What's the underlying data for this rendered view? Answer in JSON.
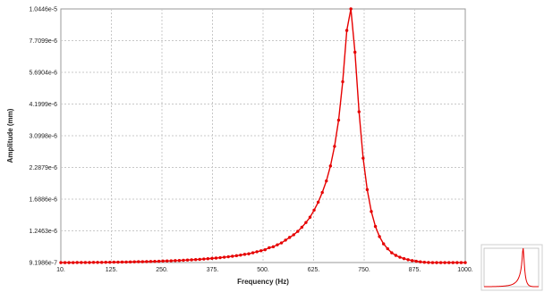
{
  "chart_data": {
    "type": "line",
    "title": "",
    "xlabel": "Frequency (Hz)",
    "ylabel": "Amplitude (mm)",
    "x_ticks": [
      "10.",
      "125.",
      "250.",
      "375.",
      "500.",
      "625.",
      "750.",
      "875.",
      "1000."
    ],
    "y_ticks": [
      "9.1986e-7",
      "1.2463e-6",
      "1.6886e-6",
      "2.2879e-6",
      "3.0998e-6",
      "4.1999e-6",
      "5.6904e-6",
      "7.7099e-6",
      "1.0446e-5"
    ],
    "y_scale": "log",
    "xlim": [
      10,
      1000
    ],
    "ylim": [
      9.1986e-07,
      1.0446e-05
    ],
    "grid": true,
    "line_color": "#e60000",
    "series": [
      {
        "x": [
          10,
          20,
          30,
          40,
          50,
          60,
          70,
          80,
          90,
          100,
          110,
          120,
          130,
          140,
          150,
          160,
          170,
          180,
          190,
          200,
          210,
          220,
          230,
          240,
          250,
          260,
          270,
          280,
          290,
          300,
          310,
          320,
          330,
          340,
          350,
          360,
          370,
          380,
          390,
          400,
          410,
          420,
          430,
          440,
          450,
          460,
          470,
          480,
          490,
          500,
          510,
          520,
          530,
          540,
          550,
          560,
          570,
          580,
          590,
          600,
          610,
          620,
          630,
          640,
          650,
          660,
          670,
          680,
          690,
          700,
          710,
          720,
          730,
          740,
          750,
          760,
          770,
          780,
          790,
          800,
          810,
          820,
          830,
          840,
          850,
          860,
          870,
          880,
          890,
          900,
          910,
          920,
          930,
          940,
          950,
          960,
          970,
          980,
          990,
          1000
        ],
        "y": [
          9.19e-07,
          9.19e-07,
          9.19e-07,
          9.19e-07,
          9.2e-07,
          9.2e-07,
          9.2e-07,
          9.2e-07,
          9.21e-07,
          9.21e-07,
          9.21e-07,
          9.22e-07,
          9.22e-07,
          9.23e-07,
          9.23e-07,
          9.24e-07,
          9.24e-07,
          9.25e-07,
          9.26e-07,
          9.27e-07,
          9.27e-07,
          9.28e-07,
          9.29e-07,
          9.3e-07,
          9.31e-07,
          9.33e-07,
          9.34e-07,
          9.35e-07,
          9.37e-07,
          9.38e-07,
          9.4e-07,
          9.42e-07,
          9.44e-07,
          9.46e-07,
          9.48e-07,
          9.51e-07,
          9.54e-07,
          9.57e-07,
          9.6e-07,
          9.64e-07,
          9.68e-07,
          9.72e-07,
          9.77e-07,
          9.82e-07,
          9.88e-07,
          9.95e-07,
          1e-06,
          1.01e-06,
          1.02e-06,
          1.03e-06,
          1.04e-06,
          1.06e-06,
          1.07e-06,
          1.09e-06,
          1.11e-06,
          1.14e-06,
          1.17e-06,
          1.2e-06,
          1.24e-06,
          1.29e-06,
          1.35e-06,
          1.42e-06,
          1.52e-06,
          1.64e-06,
          1.8e-06,
          2.01e-06,
          2.32e-06,
          2.8e-06,
          3.6e-06,
          5.2e-06,
          8.5e-06,
          1.0446e-05,
          6.9e-06,
          3.9e-06,
          2.5e-06,
          1.85e-06,
          1.5e-06,
          1.3e-06,
          1.18e-06,
          1.1e-06,
          1.05e-06,
          1.01e-06,
          9.85e-07,
          9.68e-07,
          9.55e-07,
          9.45e-07,
          9.37e-07,
          9.31e-07,
          9.26e-07,
          9.22e-07,
          9.2e-07,
          9.19e-07,
          9.19e-07,
          9.19e-07,
          9.19e-07,
          9.19e-07,
          9.19e-07,
          9.19e-07,
          9.19e-07,
          9.19e-07
        ]
      }
    ]
  }
}
